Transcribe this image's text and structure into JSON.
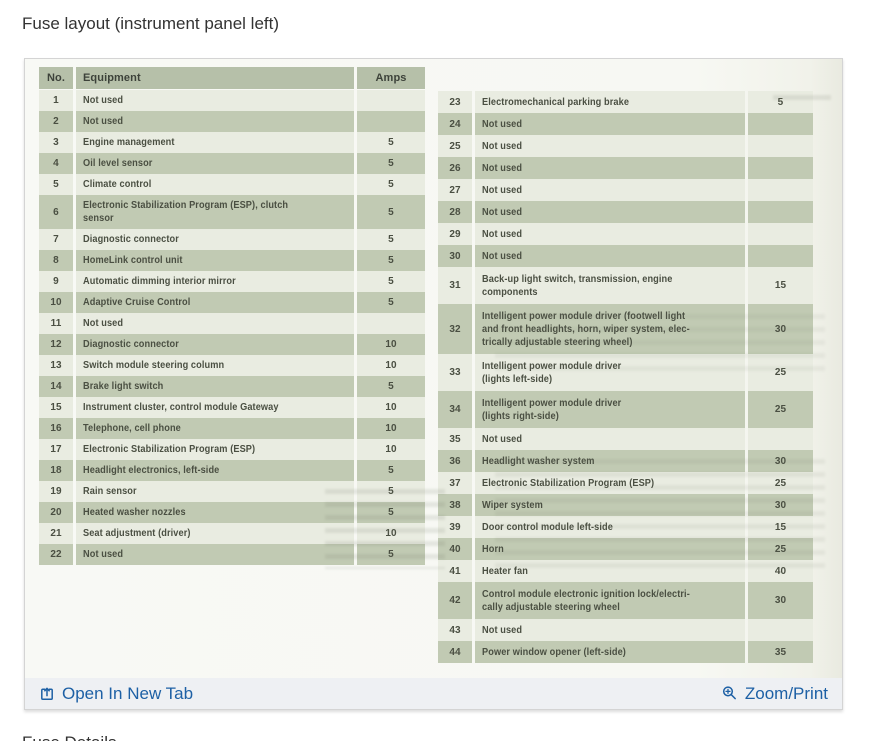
{
  "page": {
    "title": "Fuse layout (instrument panel left)",
    "next_section_title": "Fuse Details"
  },
  "colors": {
    "link": "#1d60a5",
    "row_shaded": "#c1cab3",
    "row_light": "#e9ece1",
    "row_header": "#b6c0a9"
  },
  "table": {
    "headers": {
      "no": "No.",
      "equipment": "Equipment",
      "amps": "Amps"
    },
    "left_rows": [
      {
        "no": "1",
        "equipment": "Not used",
        "amps": ""
      },
      {
        "no": "2",
        "equipment": "Not used",
        "amps": ""
      },
      {
        "no": "3",
        "equipment": "Engine management",
        "amps": "5"
      },
      {
        "no": "4",
        "equipment": "Oil level sensor",
        "amps": "5"
      },
      {
        "no": "5",
        "equipment": "Climate control",
        "amps": "5"
      },
      {
        "no": "6",
        "equipment": "Electronic Stabilization Program (ESP), clutch\nsensor",
        "amps": "5"
      },
      {
        "no": "7",
        "equipment": "Diagnostic connector",
        "amps": "5"
      },
      {
        "no": "8",
        "equipment": "HomeLink control unit",
        "amps": "5"
      },
      {
        "no": "9",
        "equipment": "Automatic dimming interior mirror",
        "amps": "5"
      },
      {
        "no": "10",
        "equipment": "Adaptive Cruise Control",
        "amps": "5"
      },
      {
        "no": "11",
        "equipment": "Not used",
        "amps": ""
      },
      {
        "no": "12",
        "equipment": "Diagnostic connector",
        "amps": "10"
      },
      {
        "no": "13",
        "equipment": "Switch module steering column",
        "amps": "10"
      },
      {
        "no": "14",
        "equipment": "Brake light switch",
        "amps": "5"
      },
      {
        "no": "15",
        "equipment": "Instrument cluster, control module Gateway",
        "amps": "10"
      },
      {
        "no": "16",
        "equipment": "Telephone, cell phone",
        "amps": "10"
      },
      {
        "no": "17",
        "equipment": "Electronic Stabilization Program (ESP)",
        "amps": "10"
      },
      {
        "no": "18",
        "equipment": "Headlight electronics, left-side",
        "amps": "5"
      },
      {
        "no": "19",
        "equipment": "Rain sensor",
        "amps": "5"
      },
      {
        "no": "20",
        "equipment": "Heated washer nozzles",
        "amps": "5"
      },
      {
        "no": "21",
        "equipment": "Seat adjustment (driver)",
        "amps": "10"
      },
      {
        "no": "22",
        "equipment": "Not used",
        "amps": "5"
      }
    ],
    "right_rows": [
      {
        "no": "23",
        "equipment": "Electromechanical parking brake",
        "amps": "5"
      },
      {
        "no": "24",
        "equipment": "Not used",
        "amps": ""
      },
      {
        "no": "25",
        "equipment": "Not used",
        "amps": ""
      },
      {
        "no": "26",
        "equipment": "Not used",
        "amps": ""
      },
      {
        "no": "27",
        "equipment": "Not used",
        "amps": ""
      },
      {
        "no": "28",
        "equipment": "Not used",
        "amps": ""
      },
      {
        "no": "29",
        "equipment": "Not used",
        "amps": ""
      },
      {
        "no": "30",
        "equipment": "Not used",
        "amps": ""
      },
      {
        "no": "31",
        "equipment": "Back-up light switch, transmission, engine\ncomponents",
        "amps": "15"
      },
      {
        "no": "32",
        "equipment": "Intelligent power module driver (footwell light\nand front headlights, horn, wiper system, elec-\ntrically adjustable steering wheel)",
        "amps": "30"
      },
      {
        "no": "33",
        "equipment": "Intelligent power module driver\n(lights left-side)",
        "amps": "25"
      },
      {
        "no": "34",
        "equipment": "Intelligent power module driver\n(lights right-side)",
        "amps": "25"
      },
      {
        "no": "35",
        "equipment": "Not used",
        "amps": ""
      },
      {
        "no": "36",
        "equipment": "Headlight washer system",
        "amps": "30"
      },
      {
        "no": "37",
        "equipment": "Electronic Stabilization Program (ESP)",
        "amps": "25"
      },
      {
        "no": "38",
        "equipment": "Wiper system",
        "amps": "30"
      },
      {
        "no": "39",
        "equipment": "Door control module left-side",
        "amps": "15"
      },
      {
        "no": "40",
        "equipment": "Horn",
        "amps": "25"
      },
      {
        "no": "41",
        "equipment": "Heater fan",
        "amps": "40"
      },
      {
        "no": "42",
        "equipment": "Control module electronic ignition lock/electri-\ncally adjustable steering wheel",
        "amps": "30"
      },
      {
        "no": "43",
        "equipment": "Not used",
        "amps": ""
      },
      {
        "no": "44",
        "equipment": "Power window opener (left-side)",
        "amps": "35"
      }
    ]
  },
  "toolbar": {
    "open_link": "Open In New Tab",
    "zoom_link": "Zoom/Print"
  }
}
